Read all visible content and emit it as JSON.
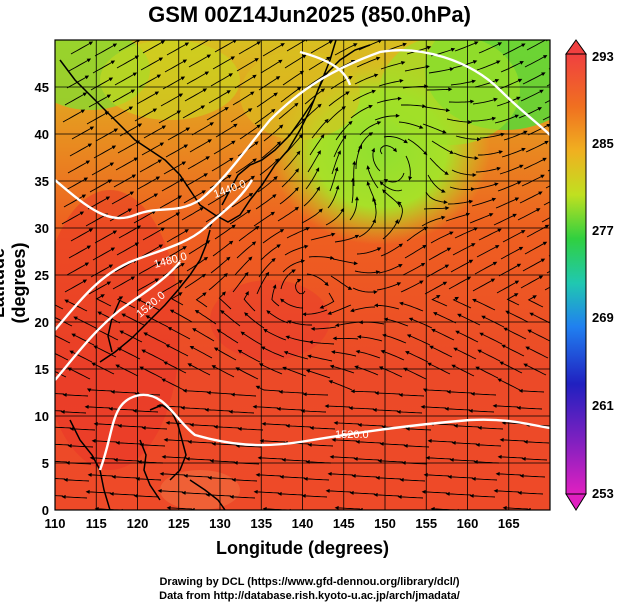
{
  "title": "GSM 00Z14Jun2025 (850.0hPa)",
  "x_axis": {
    "label": "Longitude (degrees)",
    "range": [
      110,
      170
    ],
    "ticks": [
      110,
      115,
      120,
      125,
      130,
      135,
      140,
      145,
      150,
      155,
      160,
      165
    ]
  },
  "y_axis": {
    "label": "Latitude  (degrees)",
    "range": [
      0,
      50
    ],
    "ticks": [
      0,
      5,
      10,
      15,
      20,
      25,
      30,
      35,
      40,
      45
    ]
  },
  "colorbar": {
    "min": 253,
    "max": 293,
    "tick_labels": [
      "293",
      "285",
      "277",
      "269",
      "261",
      "253"
    ],
    "colors": [
      "#f04a40",
      "#f07820",
      "#f0b020",
      "#c8e820",
      "#40d840",
      "#20c8b8",
      "#2080f0",
      "#2020c0",
      "#8020c0",
      "#e020c0"
    ]
  },
  "contour_labels": [
    "1440.0",
    "1480.0",
    "1520.0",
    "1520.0"
  ],
  "credits": {
    "line1": "Drawing by DCL (https://www.gfd-dennou.org/library/dcl/)",
    "line2": "Data from http://database.rish.kyoto-u.ac.jp/arch/jmadata/"
  }
}
